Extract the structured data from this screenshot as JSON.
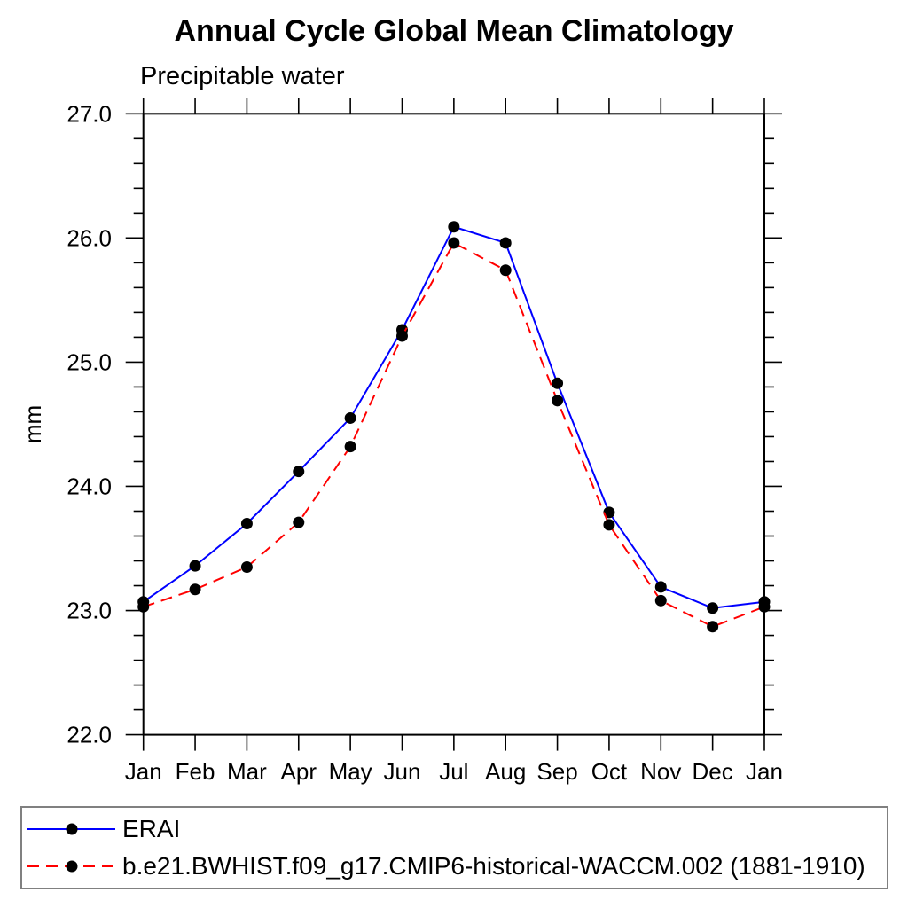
{
  "header": {
    "title": "Annual Cycle Global Mean Climatology",
    "subtitle": "Precipitable water"
  },
  "chart_data": {
    "type": "line",
    "title": "Annual Cycle Global Mean Climatology",
    "subtitle": "Precipitable water",
    "xlabel": "",
    "ylabel": "mm",
    "categories": [
      "Jan",
      "Feb",
      "Mar",
      "Apr",
      "May",
      "Jun",
      "Jul",
      "Aug",
      "Sep",
      "Oct",
      "Nov",
      "Dec",
      "Jan"
    ],
    "ylim": [
      22.0,
      27.0
    ],
    "ytick_labels": [
      "22.0",
      "23.0",
      "24.0",
      "25.0",
      "26.0",
      "27.0"
    ],
    "ytick_interval": 1.0,
    "ytick_minor_interval": 0.2,
    "grid": false,
    "legend_position": "bottom",
    "series": [
      {
        "name": "ERAI",
        "color": "#0000ff",
        "line_style": "solid",
        "marker": "circle",
        "marker_color": "#000000",
        "values": [
          23.07,
          23.36,
          23.7,
          24.12,
          24.55,
          25.26,
          26.09,
          25.96,
          24.83,
          23.79,
          23.19,
          23.02,
          23.07
        ]
      },
      {
        "name": "b.e21.BWHIST.f09_g17.CMIP6-historical-WACCM.002 (1881-1910)",
        "color": "#ff0000",
        "line_style": "dashed",
        "marker": "circle",
        "marker_color": "#000000",
        "values": [
          23.03,
          23.17,
          23.35,
          23.71,
          24.32,
          25.21,
          25.96,
          25.74,
          24.69,
          23.69,
          23.08,
          22.87,
          23.03
        ]
      }
    ]
  },
  "colors": {
    "axis": "#000000",
    "text": "#000000",
    "legend_border": "#808080",
    "background": "#ffffff"
  }
}
